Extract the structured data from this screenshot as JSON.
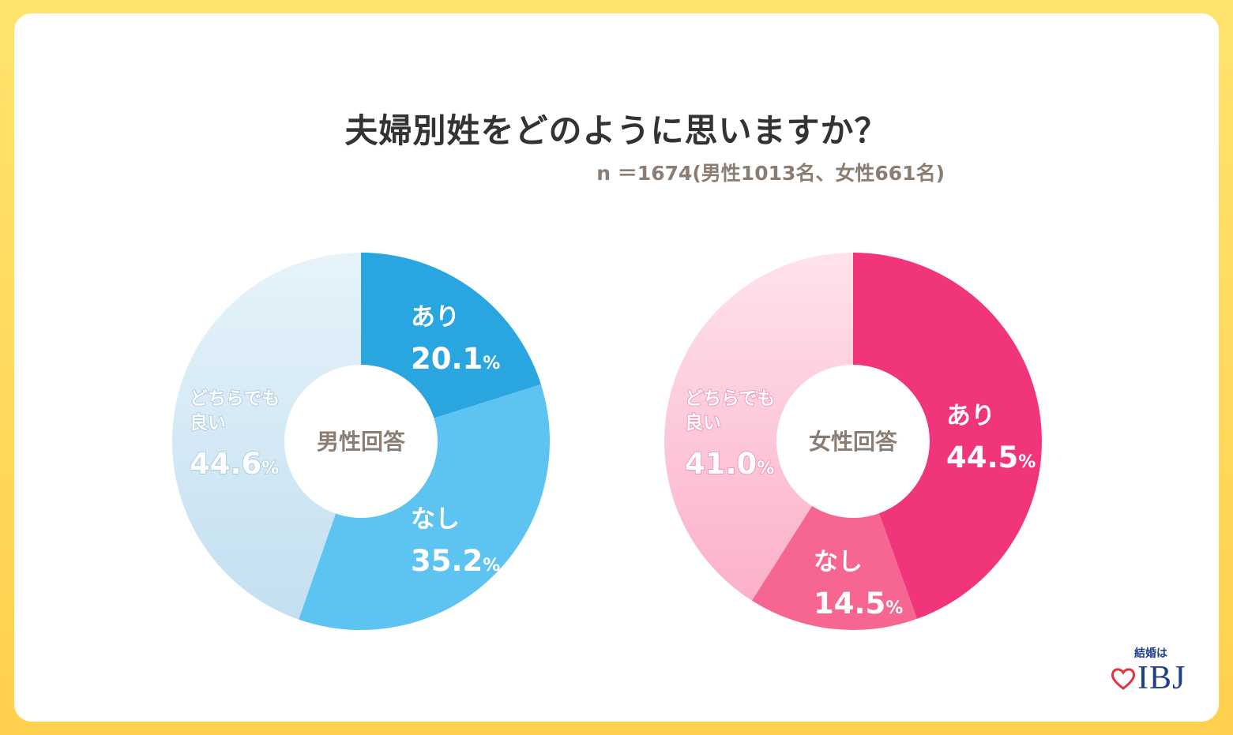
{
  "title": "夫婦別姓をどのように思いますか？",
  "sample_note": "n ＝1674(男性1013名、女性661名)",
  "logo": {
    "small": "結婚は",
    "main": "IBJ",
    "icon": "heart-icon"
  },
  "colors": {
    "male": [
      "#29a5df",
      "#5dc3f1",
      "#cfe7f4"
    ],
    "female": [
      "#f0357a",
      "#f76690",
      "#fdbccf"
    ],
    "center_text": "#8c7d73"
  },
  "chart_data": [
    {
      "type": "pie",
      "title": "男性回答",
      "categories": [
        "あり",
        "なし",
        "どちらでも良い"
      ],
      "labels": [
        [
          "あり"
        ],
        [
          "なし"
        ],
        [
          "どちらでも",
          "良い"
        ]
      ],
      "values": [
        20.1,
        35.2,
        44.6
      ],
      "value_labels": [
        "20.1",
        "35.2",
        "44.6"
      ],
      "unit": "%"
    },
    {
      "type": "pie",
      "title": "女性回答",
      "categories": [
        "あり",
        "なし",
        "どちらでも良い"
      ],
      "labels": [
        [
          "あり"
        ],
        [
          "なし"
        ],
        [
          "どちらでも",
          "良い"
        ]
      ],
      "values": [
        44.5,
        14.5,
        41.0
      ],
      "value_labels": [
        "44.5",
        "14.5",
        "41.0"
      ],
      "unit": "%"
    }
  ]
}
